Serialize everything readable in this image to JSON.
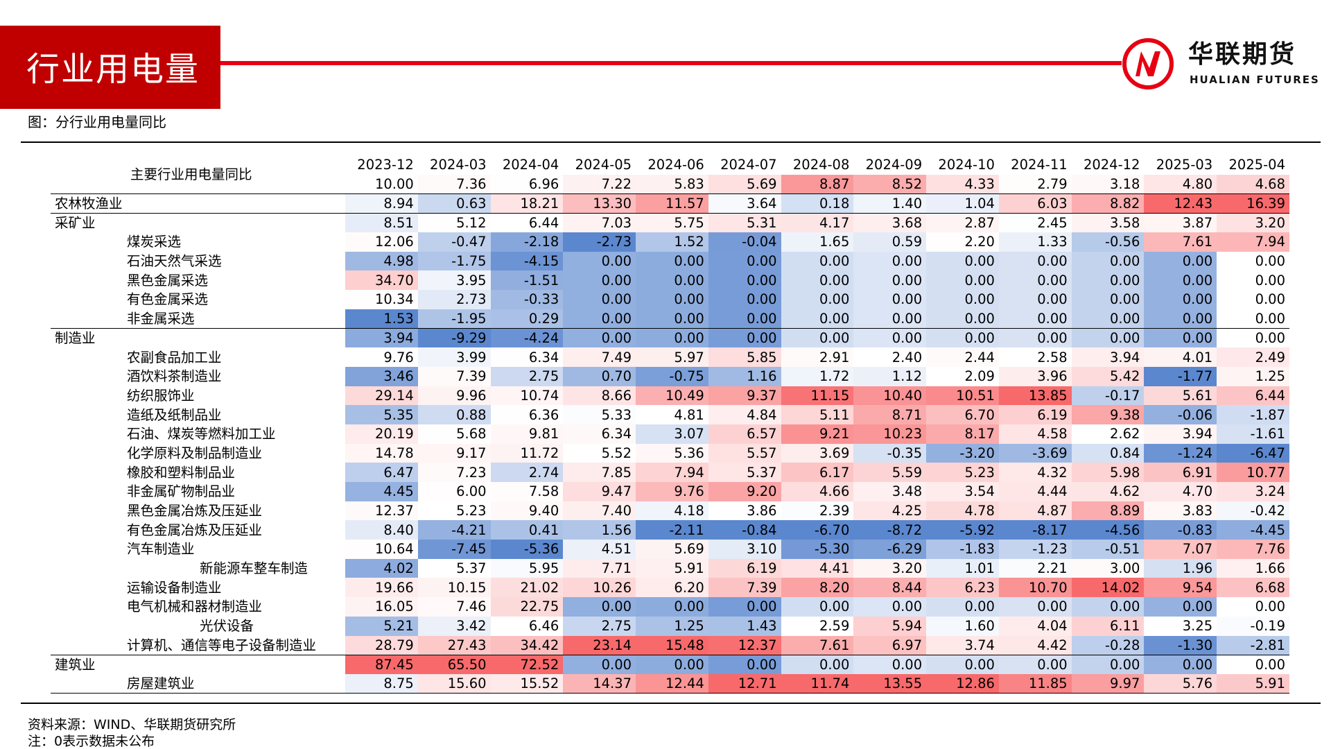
{
  "header": {
    "title": "行业用电量",
    "logo_cn": "华联期货",
    "logo_en": "HUALIAN FUTURES",
    "brand_color": "#c00000"
  },
  "caption": "图：分行业用电量同比",
  "source": "资料来源：WIND、华联期货研究所",
  "note": "注：0表示数据未公布",
  "chart_data": {
    "type": "table",
    "title": "主要行业用电量同比",
    "color_scale": {
      "low": "#5b87cf",
      "mid": "#ffffff",
      "high": "#f8696b",
      "applied": "per column"
    },
    "columns": [
      "2023-12",
      "2024-03",
      "2024-04",
      "2024-05",
      "2024-06",
      "2024-07",
      "2024-08",
      "2024-09",
      "2024-10",
      "2024-11",
      "2024-12",
      "2025-03",
      "2025-04"
    ],
    "total_row": {
      "label": "",
      "values": [
        "10.00",
        "7.36",
        "6.96",
        "7.22",
        "5.83",
        "5.69",
        "8.87",
        "8.52",
        "4.33",
        "2.79",
        "3.18",
        "4.80",
        "4.68"
      ]
    },
    "rows": [
      {
        "label": "农林牧渔业",
        "level": 0,
        "section_start": true,
        "values": [
          "8.94",
          "0.63",
          "18.21",
          "13.30",
          "11.57",
          "3.64",
          "0.18",
          "1.40",
          "1.04",
          "6.03",
          "8.82",
          "12.43",
          "16.39"
        ]
      },
      {
        "label": "采矿业",
        "level": 0,
        "section_start": true,
        "values": [
          "8.51",
          "5.12",
          "6.44",
          "7.03",
          "5.75",
          "5.31",
          "4.17",
          "3.68",
          "2.87",
          "2.45",
          "3.58",
          "3.87",
          "3.20"
        ]
      },
      {
        "label": "煤炭采选",
        "level": 1,
        "values": [
          "12.06",
          "-0.47",
          "-2.18",
          "-2.73",
          "1.52",
          "-0.04",
          "1.65",
          "0.59",
          "2.20",
          "1.33",
          "-0.56",
          "7.61",
          "7.94"
        ]
      },
      {
        "label": "石油天然气采选",
        "level": 1,
        "values": [
          "4.98",
          "-1.75",
          "-4.15",
          "0.00",
          "0.00",
          "0.00",
          "0.00",
          "0.00",
          "0.00",
          "0.00",
          "0.00",
          "0.00",
          "0.00"
        ]
      },
      {
        "label": "黑色金属采选",
        "level": 1,
        "values": [
          "34.70",
          "3.95",
          "-1.51",
          "0.00",
          "0.00",
          "0.00",
          "0.00",
          "0.00",
          "0.00",
          "0.00",
          "0.00",
          "0.00",
          "0.00"
        ]
      },
      {
        "label": "有色金属采选",
        "level": 1,
        "values": [
          "10.34",
          "2.73",
          "-0.33",
          "0.00",
          "0.00",
          "0.00",
          "0.00",
          "0.00",
          "0.00",
          "0.00",
          "0.00",
          "0.00",
          "0.00"
        ]
      },
      {
        "label": "非金属采选",
        "level": 1,
        "values": [
          "1.53",
          "-1.95",
          "0.29",
          "0.00",
          "0.00",
          "0.00",
          "0.00",
          "0.00",
          "0.00",
          "0.00",
          "0.00",
          "0.00",
          "0.00"
        ]
      },
      {
        "label": "制造业",
        "level": 0,
        "section_start": true,
        "values": [
          "3.94",
          "-9.29",
          "-4.24",
          "0.00",
          "0.00",
          "0.00",
          "0.00",
          "0.00",
          "0.00",
          "0.00",
          "0.00",
          "0.00",
          "0.00"
        ]
      },
      {
        "label": "农副食品加工业",
        "level": 1,
        "values": [
          "9.76",
          "3.99",
          "6.34",
          "7.49",
          "5.97",
          "5.85",
          "2.91",
          "2.40",
          "2.44",
          "2.58",
          "3.94",
          "4.01",
          "2.49"
        ]
      },
      {
        "label": "酒饮料茶制造业",
        "level": 1,
        "values": [
          "3.46",
          "7.39",
          "2.75",
          "0.70",
          "-0.75",
          "1.16",
          "1.72",
          "1.12",
          "2.09",
          "3.96",
          "5.42",
          "-1.77",
          "1.25"
        ]
      },
      {
        "label": "纺织服饰业",
        "level": 1,
        "values": [
          "29.14",
          "9.96",
          "10.74",
          "8.66",
          "10.49",
          "9.37",
          "11.15",
          "10.40",
          "10.51",
          "13.85",
          "-0.17",
          "5.61",
          "6.44"
        ]
      },
      {
        "label": "造纸及纸制品业",
        "level": 1,
        "values": [
          "5.35",
          "0.88",
          "6.36",
          "5.33",
          "4.81",
          "4.84",
          "5.11",
          "8.71",
          "6.70",
          "6.19",
          "9.38",
          "-0.06",
          "-1.87"
        ]
      },
      {
        "label": "石油、煤炭等燃料加工业",
        "level": 1,
        "values": [
          "20.19",
          "5.68",
          "9.81",
          "6.34",
          "3.07",
          "6.57",
          "9.21",
          "10.23",
          "8.17",
          "4.58",
          "2.62",
          "3.94",
          "-1.61"
        ]
      },
      {
        "label": "化学原料及制品制造业",
        "level": 1,
        "values": [
          "14.78",
          "9.17",
          "11.72",
          "5.52",
          "5.36",
          "5.57",
          "3.69",
          "-0.35",
          "-3.20",
          "-3.69",
          "0.84",
          "-1.24",
          "-6.47"
        ]
      },
      {
        "label": "橡胶和塑料制品业",
        "level": 1,
        "values": [
          "6.47",
          "7.23",
          "2.74",
          "7.85",
          "7.94",
          "5.37",
          "6.17",
          "5.59",
          "5.23",
          "4.32",
          "5.98",
          "6.91",
          "10.77"
        ]
      },
      {
        "label": "非金属矿物制品业",
        "level": 1,
        "values": [
          "4.45",
          "6.00",
          "7.58",
          "9.47",
          "9.76",
          "9.20",
          "4.66",
          "3.48",
          "3.54",
          "4.44",
          "4.62",
          "4.70",
          "3.24"
        ]
      },
      {
        "label": "黑色金属冶炼及压延业",
        "level": 1,
        "values": [
          "12.37",
          "5.23",
          "9.40",
          "7.40",
          "4.18",
          "3.86",
          "2.39",
          "4.25",
          "4.78",
          "4.87",
          "8.89",
          "3.83",
          "-0.42"
        ]
      },
      {
        "label": "有色金属冶炼及压延业",
        "level": 1,
        "values": [
          "8.40",
          "-4.21",
          "0.41",
          "1.56",
          "-2.11",
          "-0.84",
          "-6.70",
          "-8.72",
          "-5.92",
          "-8.17",
          "-4.56",
          "-0.83",
          "-4.45"
        ]
      },
      {
        "label": "汽车制造业",
        "level": 1,
        "values": [
          "10.64",
          "-7.45",
          "-5.36",
          "4.51",
          "5.69",
          "3.10",
          "-5.30",
          "-6.29",
          "-1.83",
          "-1.23",
          "-0.51",
          "7.07",
          "7.76"
        ]
      },
      {
        "label": "新能源车整车制造",
        "level": 2,
        "values": [
          "4.02",
          "5.37",
          "5.95",
          "7.71",
          "5.91",
          "6.19",
          "4.41",
          "3.20",
          "1.01",
          "2.21",
          "3.00",
          "1.96",
          "1.66"
        ]
      },
      {
        "label": "运输设备制造业",
        "level": 1,
        "values": [
          "19.66",
          "10.15",
          "21.02",
          "10.26",
          "6.20",
          "7.39",
          "8.20",
          "8.44",
          "6.23",
          "10.70",
          "14.02",
          "9.54",
          "6.68"
        ]
      },
      {
        "label": "电气机械和器材制造业",
        "level": 1,
        "values": [
          "16.05",
          "7.46",
          "22.75",
          "0.00",
          "0.00",
          "0.00",
          "0.00",
          "0.00",
          "0.00",
          "0.00",
          "0.00",
          "0.00",
          "0.00"
        ]
      },
      {
        "label": "光伏设备",
        "level": 2,
        "values": [
          "5.21",
          "3.42",
          "6.46",
          "2.75",
          "1.25",
          "1.43",
          "2.59",
          "5.94",
          "1.60",
          "4.04",
          "6.11",
          "3.25",
          "-0.19"
        ]
      },
      {
        "label": "计算机、通信等电子设备制造业",
        "level": 1,
        "values": [
          "28.79",
          "27.43",
          "34.42",
          "23.14",
          "15.48",
          "12.37",
          "7.61",
          "6.97",
          "3.74",
          "4.42",
          "-0.28",
          "-1.30",
          "-2.81"
        ]
      },
      {
        "label": "建筑业",
        "level": 0,
        "section_start": true,
        "values": [
          "87.45",
          "65.50",
          "72.52",
          "0.00",
          "0.00",
          "0.00",
          "0.00",
          "0.00",
          "0.00",
          "0.00",
          "0.00",
          "0.00",
          "0.00"
        ]
      },
      {
        "label": "房屋建筑业",
        "level": 1,
        "last": true,
        "values": [
          "8.75",
          "15.60",
          "15.52",
          "14.37",
          "12.44",
          "12.71",
          "11.74",
          "13.55",
          "12.86",
          "11.85",
          "9.97",
          "5.76",
          "5.91"
        ]
      }
    ]
  }
}
